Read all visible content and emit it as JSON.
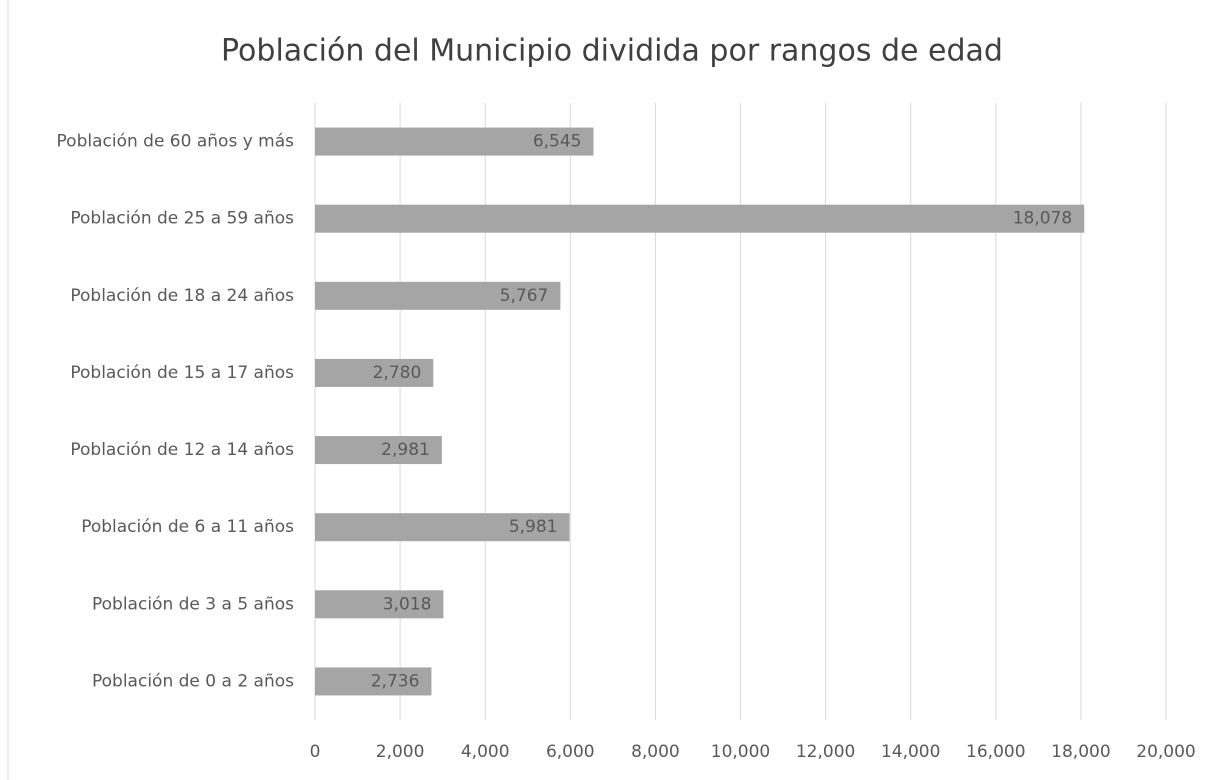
{
  "chart_data": {
    "type": "bar",
    "orientation": "horizontal",
    "title": "Población del Municipio dividida por rangos de edad",
    "categories": [
      "Población de 60 años y más",
      "Población de 25 a 59 años",
      "Población de 18 a 24 años",
      "Población de 15 a 17 años",
      "Población de 12 a 14 años",
      "Población de 6 a 11 años",
      "Población de 3 a 5 años",
      "Población de 0 a 2 años"
    ],
    "values": [
      6545,
      18078,
      5767,
      2780,
      2981,
      5981,
      3018,
      2736
    ],
    "value_labels": [
      "6,545",
      "18,078",
      "5,767",
      "2,780",
      "2,981",
      "5,981",
      "3,018",
      "2,736"
    ],
    "color": "#a5a5a5",
    "xlim": [
      0,
      20000
    ],
    "xticks": [
      0,
      {
        "value": 2000,
        "label": "2,000"
      },
      {
        "value": 4000,
        "label": "4,000"
      },
      {
        "value": 6000,
        "label": "6,000"
      },
      {
        "value": 8000,
        "label": "8,000"
      },
      {
        "value": 10000,
        "label": "10,000"
      },
      {
        "value": 12000,
        "label": "12,000"
      },
      {
        "value": 14000,
        "label": "14,000"
      },
      {
        "value": 16000,
        "label": "16,000"
      },
      {
        "value": 18000,
        "label": "18,000"
      },
      {
        "value": 20000,
        "label": "20,000"
      }
    ],
    "grid": true
  }
}
